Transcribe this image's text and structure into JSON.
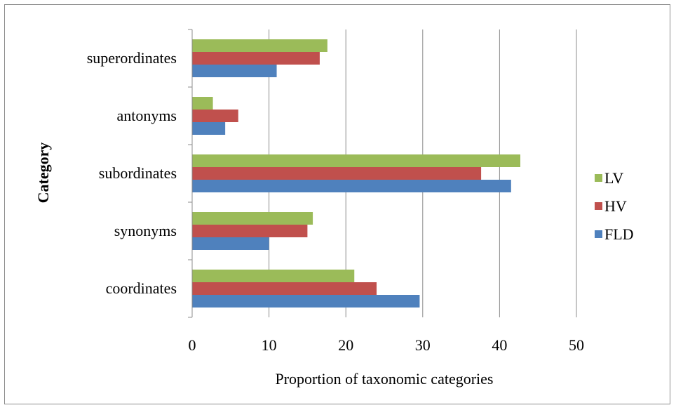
{
  "chart_data": {
    "type": "bar",
    "orientation": "horizontal",
    "categories": [
      "coordinates",
      "synonyms",
      "subordinates",
      "antonyms",
      "superordinates"
    ],
    "series": [
      {
        "name": "FLD",
        "color": "#4f81bd",
        "values": [
          29.6,
          10.0,
          41.5,
          4.3,
          11.0
        ]
      },
      {
        "name": "HV",
        "color": "#c0504d",
        "values": [
          24.0,
          15.0,
          37.6,
          6.0,
          16.6
        ]
      },
      {
        "name": "LV",
        "color": "#9bbb59",
        "values": [
          21.1,
          15.7,
          42.7,
          2.7,
          17.6
        ]
      }
    ],
    "xlabel": "Proportion of taxonomic categories",
    "ylabel": "Category",
    "xlim": [
      0,
      50
    ],
    "xticks": [
      "0",
      "10",
      "20",
      "30",
      "40",
      "50"
    ],
    "grid": "vertical major gridlines",
    "legend_position": "right",
    "legend_order": [
      "LV",
      "HV",
      "FLD"
    ]
  }
}
